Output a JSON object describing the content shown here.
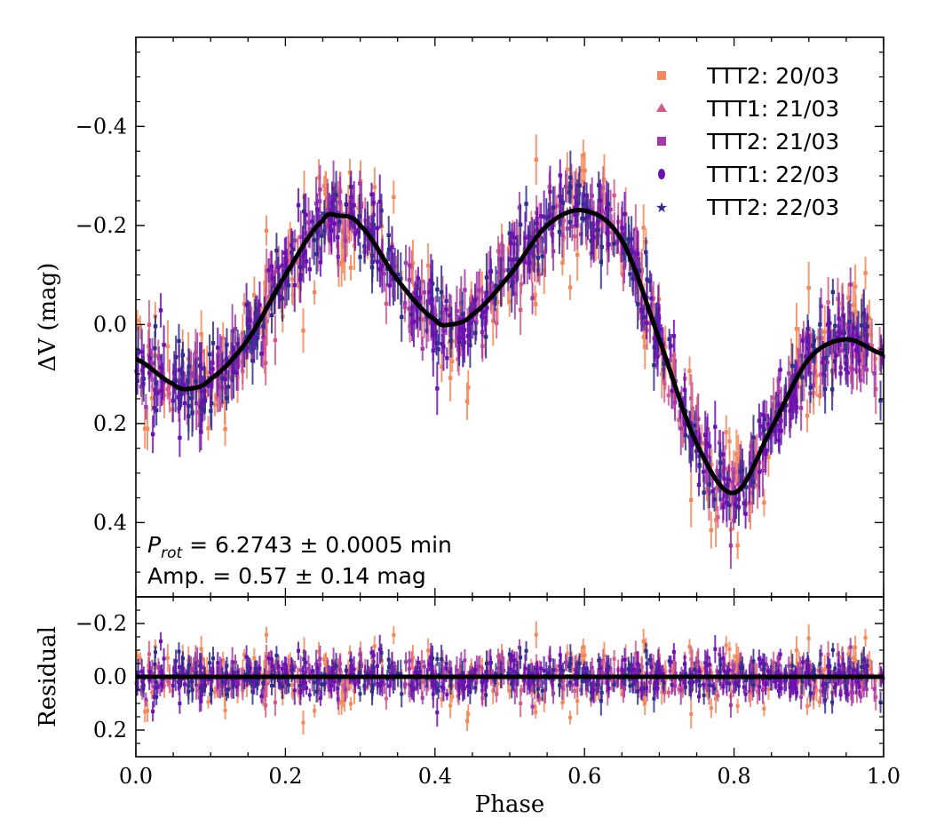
{
  "chart_data": [
    {
      "panel": "main",
      "type": "scatter",
      "xlabel": "Phase",
      "ylabel": "ΔV (mag)",
      "xlim": [
        0.0,
        1.0
      ],
      "ylim": [
        0.55,
        -0.58
      ],
      "y_inverted": true,
      "y_ticks": [
        -0.4,
        -0.2,
        0.0,
        0.2,
        0.4
      ],
      "y_tick_labels": [
        "−0.4",
        "−0.2",
        "0.0",
        "0.2",
        "0.4"
      ],
      "grid": false,
      "legend_position": "top-right",
      "series": [
        {
          "name": "TTT2: 20/03",
          "marker": "square",
          "color": "#f08a5d"
        },
        {
          "name": "TTT1: 21/03",
          "marker": "triangle",
          "color": "#d05c8a"
        },
        {
          "name": "TTT2: 21/03",
          "marker": "square",
          "color": "#a13aa8"
        },
        {
          "name": "TTT1: 22/03",
          "marker": "circle",
          "color": "#6a12b0"
        },
        {
          "name": "TTT2: 22/03",
          "marker": "star",
          "color": "#2f2e8a"
        }
      ],
      "model_curve": {
        "color": "#000000",
        "phase": [
          0.0,
          0.05,
          0.07,
          0.1,
          0.15,
          0.2,
          0.25,
          0.27,
          0.3,
          0.35,
          0.4,
          0.42,
          0.45,
          0.5,
          0.55,
          0.6,
          0.65,
          0.7,
          0.75,
          0.8,
          0.85,
          0.9,
          0.95,
          1.0
        ],
        "delta_v": [
          0.07,
          0.12,
          0.13,
          0.11,
          0.03,
          -0.1,
          -0.21,
          -0.22,
          -0.2,
          -0.09,
          -0.01,
          0.0,
          -0.02,
          -0.1,
          -0.2,
          -0.23,
          -0.17,
          0.03,
          0.24,
          0.34,
          0.21,
          0.07,
          0.03,
          0.06
        ]
      },
      "annotations": [
        "P_rot = 6.2743 ± 0.0005 min",
        "Amp. = 0.57 ± 0.14 mag"
      ]
    },
    {
      "panel": "residual",
      "type": "scatter",
      "xlabel": "Phase",
      "ylabel": "Residual",
      "xlim": [
        0.0,
        1.0
      ],
      "ylim": [
        0.3,
        -0.3
      ],
      "y_inverted": true,
      "x_ticks": [
        0.0,
        0.2,
        0.4,
        0.6,
        0.8,
        1.0
      ],
      "x_tick_labels": [
        "0.0",
        "0.2",
        "0.4",
        "0.6",
        "0.8",
        "1.0"
      ],
      "y_ticks": [
        -0.2,
        0.0,
        0.2
      ],
      "y_tick_labels": [
        "−0.2",
        "0.0",
        "0.2"
      ],
      "zero_line": 0.0
    }
  ],
  "annotation_prefix": "P",
  "annotation_subscript": "rot",
  "annotation_line1_rest": " = 6.2743 ± 0.0005 min",
  "annotation_line2": "Amp. = 0.57 ± 0.14 mag"
}
